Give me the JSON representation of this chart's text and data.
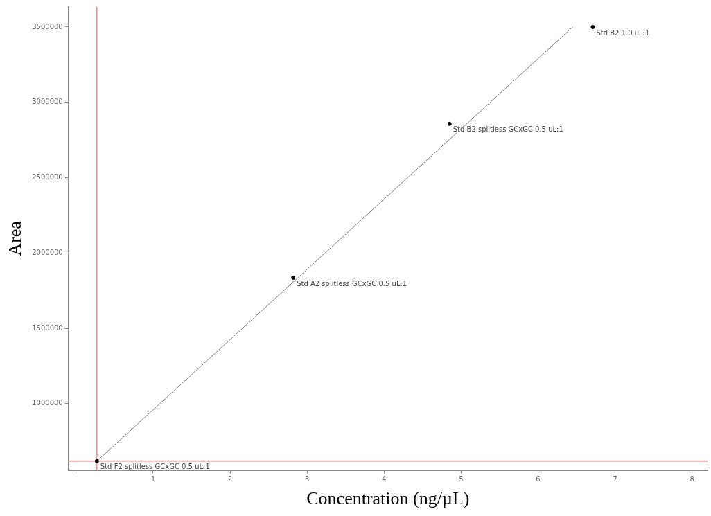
{
  "chart_data": {
    "type": "scatter",
    "xlabel": "Concentration (ng/µL)",
    "ylabel": "Area",
    "xlim": [
      -0.1,
      8.2
    ],
    "ylim": [
      559000,
      3633000
    ],
    "xticks": [
      {
        "value": 0,
        "label": null
      },
      1,
      2,
      3,
      4,
      5,
      6,
      7,
      8
    ],
    "yticks": [
      1000000,
      1500000,
      2000000,
      2500000,
      3000000,
      3500000
    ],
    "grid": false,
    "legend": false,
    "marker": "circle",
    "series": [
      {
        "color": "#000000",
        "x": [
          0.27,
          2.82,
          4.85,
          6.71
        ],
        "values": [
          619000,
          1836000,
          2857000,
          3500000
        ]
      },
      {
        "type": "line",
        "color": "#808080",
        "x": [
          0.27,
          6.45
        ],
        "values": [
          619000,
          3500000
        ],
        "marker": "none",
        "line_style": "solid"
      }
    ],
    "ref_lines": [
      {
        "axis": "x",
        "value": 0.27,
        "color": "#ff8080"
      },
      {
        "axis": "y",
        "value": 619000,
        "color": "#ff8080"
      }
    ],
    "annotations": [
      {
        "text": "Std F2 splitless GCxGC 0.5 uL:1",
        "x": 0.27,
        "y": 619000
      },
      {
        "text": "Std A2 splitless GCxGC 0.5 uL:1",
        "x": 2.82,
        "y": 1836000
      },
      {
        "text": "Std B2 splitless GCxGC 0.5 uL:1",
        "x": 4.85,
        "y": 2857000
      },
      {
        "text": "Std B2 1.0 uL:1",
        "x": 6.71,
        "y": 3500000
      }
    ]
  }
}
